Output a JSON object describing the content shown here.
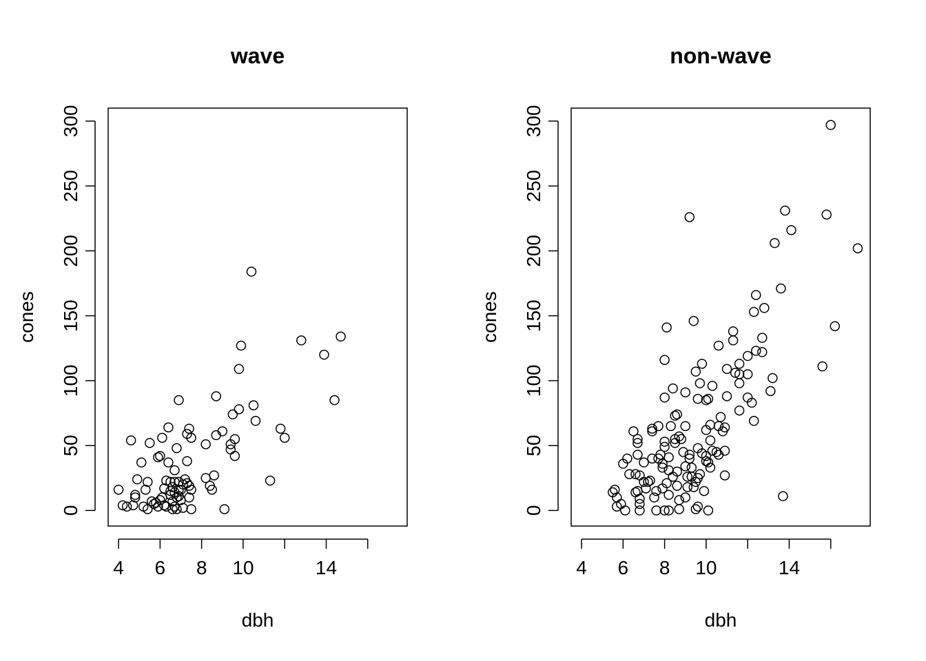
{
  "chart_data": [
    {
      "type": "scatter",
      "title": "wave",
      "xlabel": "dbh",
      "ylabel": "cones",
      "xlim": [
        3.5,
        17.9
      ],
      "ylim": [
        -12,
        310
      ],
      "xticks": [
        4,
        6,
        8,
        10,
        12,
        14,
        16
      ],
      "xtick_labels": [
        "4",
        "6",
        "8",
        "10",
        "",
        "14",
        ""
      ],
      "yticks": [
        0,
        50,
        100,
        150,
        200,
        250,
        300
      ],
      "ytick_labels": [
        "0",
        "50",
        "100",
        "150",
        "200",
        "250",
        "300"
      ],
      "marker": "open-circle",
      "grid": false,
      "legend": "none",
      "points": [
        [
          4.0,
          16
        ],
        [
          4.2,
          4
        ],
        [
          4.4,
          3
        ],
        [
          4.6,
          54
        ],
        [
          4.7,
          4
        ],
        [
          4.8,
          10
        ],
        [
          4.8,
          12
        ],
        [
          4.9,
          24
        ],
        [
          5.1,
          37
        ],
        [
          5.2,
          3
        ],
        [
          5.3,
          16
        ],
        [
          5.4,
          22
        ],
        [
          5.4,
          1
        ],
        [
          5.5,
          52
        ],
        [
          5.6,
          7
        ],
        [
          5.7,
          5
        ],
        [
          5.8,
          6
        ],
        [
          5.9,
          41
        ],
        [
          5.9,
          3
        ],
        [
          6.0,
          8
        ],
        [
          6.0,
          42
        ],
        [
          6.1,
          56
        ],
        [
          6.1,
          10
        ],
        [
          6.2,
          17
        ],
        [
          6.2,
          4
        ],
        [
          6.3,
          23
        ],
        [
          6.3,
          3
        ],
        [
          6.4,
          64
        ],
        [
          6.4,
          37
        ],
        [
          6.5,
          22
        ],
        [
          6.5,
          15
        ],
        [
          6.5,
          12
        ],
        [
          6.6,
          18
        ],
        [
          6.6,
          1
        ],
        [
          6.6,
          7
        ],
        [
          6.7,
          31
        ],
        [
          6.7,
          22
        ],
        [
          6.7,
          14
        ],
        [
          6.7,
          3
        ],
        [
          6.8,
          48
        ],
        [
          6.8,
          10
        ],
        [
          6.8,
          1
        ],
        [
          6.9,
          85
        ],
        [
          6.9,
          22
        ],
        [
          6.9,
          16
        ],
        [
          6.9,
          11
        ],
        [
          7.0,
          16
        ],
        [
          7.0,
          8
        ],
        [
          7.1,
          2
        ],
        [
          7.1,
          20
        ],
        [
          7.2,
          24
        ],
        [
          7.3,
          59
        ],
        [
          7.3,
          38
        ],
        [
          7.3,
          21
        ],
        [
          7.4,
          63
        ],
        [
          7.4,
          19
        ],
        [
          7.4,
          10
        ],
        [
          7.5,
          56
        ],
        [
          7.5,
          16
        ],
        [
          7.5,
          1
        ],
        [
          8.2,
          51
        ],
        [
          8.2,
          25
        ],
        [
          8.4,
          19
        ],
        [
          8.5,
          16
        ],
        [
          8.6,
          27
        ],
        [
          8.7,
          88
        ],
        [
          8.7,
          58
        ],
        [
          9.0,
          61
        ],
        [
          9.1,
          1
        ],
        [
          9.4,
          47
        ],
        [
          9.4,
          51
        ],
        [
          9.5,
          74
        ],
        [
          9.6,
          42
        ],
        [
          9.6,
          55
        ],
        [
          9.8,
          78
        ],
        [
          9.8,
          109
        ],
        [
          9.9,
          127
        ],
        [
          10.4,
          184
        ],
        [
          10.5,
          81
        ],
        [
          10.6,
          69
        ],
        [
          11.3,
          23
        ],
        [
          11.8,
          63
        ],
        [
          12.0,
          56
        ],
        [
          12.8,
          131
        ],
        [
          13.9,
          120
        ],
        [
          14.4,
          85
        ],
        [
          14.7,
          134
        ]
      ]
    },
    {
      "type": "scatter",
      "title": "non-wave",
      "xlabel": "dbh",
      "ylabel": "cones",
      "xlim": [
        3.5,
        17.9
      ],
      "ylim": [
        -12,
        310
      ],
      "xticks": [
        4,
        6,
        8,
        10,
        12,
        14,
        16
      ],
      "xtick_labels": [
        "4",
        "6",
        "8",
        "10",
        "",
        "14",
        ""
      ],
      "yticks": [
        0,
        50,
        100,
        150,
        200,
        250,
        300
      ],
      "ytick_labels": [
        "0",
        "50",
        "100",
        "150",
        "200",
        "250",
        "300"
      ],
      "marker": "open-circle",
      "grid": false,
      "legend": "none",
      "points": [
        [
          5.5,
          14
        ],
        [
          5.6,
          16
        ],
        [
          5.7,
          10
        ],
        [
          5.7,
          3
        ],
        [
          5.9,
          5
        ],
        [
          6.0,
          36
        ],
        [
          6.1,
          0
        ],
        [
          6.2,
          40
        ],
        [
          6.3,
          28
        ],
        [
          6.5,
          61
        ],
        [
          6.6,
          28
        ],
        [
          6.6,
          14
        ],
        [
          6.7,
          15
        ],
        [
          6.7,
          52
        ],
        [
          6.7,
          55
        ],
        [
          6.7,
          43
        ],
        [
          6.8,
          27
        ],
        [
          6.8,
          9
        ],
        [
          6.8,
          5
        ],
        [
          6.8,
          0
        ],
        [
          7.0,
          37
        ],
        [
          7.0,
          22
        ],
        [
          7.1,
          17
        ],
        [
          7.2,
          22
        ],
        [
          7.3,
          23
        ],
        [
          7.4,
          40
        ],
        [
          7.4,
          61
        ],
        [
          7.4,
          63
        ],
        [
          7.5,
          10
        ],
        [
          7.6,
          0
        ],
        [
          7.6,
          15
        ],
        [
          7.7,
          65
        ],
        [
          7.7,
          40
        ],
        [
          7.8,
          43
        ],
        [
          7.9,
          17
        ],
        [
          7.9,
          33
        ],
        [
          7.9,
          36
        ],
        [
          8.0,
          116
        ],
        [
          8.0,
          87
        ],
        [
          8.0,
          53
        ],
        [
          8.0,
          49
        ],
        [
          8.0,
          0
        ],
        [
          8.1,
          141
        ],
        [
          8.1,
          21
        ],
        [
          8.2,
          41
        ],
        [
          8.2,
          31
        ],
        [
          8.2,
          12
        ],
        [
          8.2,
          0
        ],
        [
          8.3,
          65
        ],
        [
          8.4,
          94
        ],
        [
          8.4,
          26
        ],
        [
          8.5,
          52
        ],
        [
          8.5,
          55
        ],
        [
          8.5,
          73
        ],
        [
          8.6,
          74
        ],
        [
          8.6,
          19
        ],
        [
          8.6,
          30
        ],
        [
          8.7,
          57
        ],
        [
          8.7,
          8
        ],
        [
          8.7,
          1
        ],
        [
          8.8,
          55
        ],
        [
          8.9,
          45
        ],
        [
          9.0,
          65
        ],
        [
          9.0,
          91
        ],
        [
          9.0,
          34
        ],
        [
          9.0,
          10
        ],
        [
          9.1,
          26
        ],
        [
          9.1,
          18
        ],
        [
          9.2,
          226
        ],
        [
          9.2,
          43
        ],
        [
          9.2,
          40
        ],
        [
          9.3,
          33
        ],
        [
          9.3,
          26
        ],
        [
          9.4,
          146
        ],
        [
          9.4,
          18
        ],
        [
          9.5,
          107
        ],
        [
          9.5,
          22
        ],
        [
          9.5,
          1
        ],
        [
          9.6,
          48
        ],
        [
          9.6,
          86
        ],
        [
          9.6,
          25
        ],
        [
          9.6,
          3
        ],
        [
          9.7,
          98
        ],
        [
          9.7,
          28
        ],
        [
          9.8,
          113
        ],
        [
          9.8,
          44
        ],
        [
          9.9,
          15
        ],
        [
          10.0,
          85
        ],
        [
          10.0,
          62
        ],
        [
          10.0,
          38
        ],
        [
          10.0,
          42
        ],
        [
          10.1,
          86
        ],
        [
          10.1,
          37
        ],
        [
          10.1,
          0
        ],
        [
          10.2,
          66
        ],
        [
          10.2,
          54
        ],
        [
          10.2,
          33
        ],
        [
          10.3,
          96
        ],
        [
          10.3,
          46
        ],
        [
          10.5,
          45
        ],
        [
          10.6,
          127
        ],
        [
          10.6,
          65
        ],
        [
          10.6,
          43
        ],
        [
          10.7,
          72
        ],
        [
          10.8,
          61
        ],
        [
          10.9,
          64
        ],
        [
          10.9,
          46
        ],
        [
          10.9,
          27
        ],
        [
          11.0,
          109
        ],
        [
          11.0,
          88
        ],
        [
          11.3,
          138
        ],
        [
          11.3,
          131
        ],
        [
          11.4,
          106
        ],
        [
          11.6,
          98
        ],
        [
          11.6,
          77
        ],
        [
          11.6,
          105
        ],
        [
          11.6,
          113
        ],
        [
          12.0,
          105
        ],
        [
          12.0,
          119
        ],
        [
          12.0,
          87
        ],
        [
          12.2,
          83
        ],
        [
          12.3,
          69
        ],
        [
          12.3,
          153
        ],
        [
          12.4,
          123
        ],
        [
          12.4,
          166
        ],
        [
          12.7,
          122
        ],
        [
          12.7,
          133
        ],
        [
          12.8,
          156
        ],
        [
          13.2,
          102
        ],
        [
          13.3,
          206
        ],
        [
          13.1,
          92
        ],
        [
          13.6,
          171
        ],
        [
          13.7,
          11
        ],
        [
          13.8,
          231
        ],
        [
          14.1,
          216
        ],
        [
          15.6,
          111
        ],
        [
          15.8,
          228
        ],
        [
          16.0,
          297
        ],
        [
          16.2,
          142
        ],
        [
          17.3,
          202
        ]
      ]
    }
  ]
}
